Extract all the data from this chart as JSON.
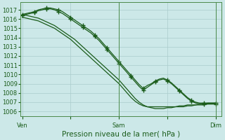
{
  "xlabel": "Pression niveau de la mer( hPa )",
  "bg_color": "#cce8e8",
  "grid_color": "#aacccc",
  "line_color": "#1a5c1a",
  "spine_color": "#4a8a4a",
  "ylim": [
    1005.5,
    1017.8
  ],
  "yticks": [
    1006,
    1007,
    1008,
    1009,
    1010,
    1011,
    1012,
    1013,
    1014,
    1015,
    1016,
    1017
  ],
  "xtick_labels": [
    "Ven",
    "",
    "Sam",
    "",
    "Dim"
  ],
  "xtick_positions": [
    0,
    12,
    24,
    36,
    48
  ],
  "xlim": [
    -0.5,
    49.5
  ],
  "vlines": [
    24,
    48
  ],
  "series": {
    "smooth1": [
      1016.5,
      1016.4,
      1016.3,
      1016.2,
      1016.1,
      1015.9,
      1015.7,
      1015.5,
      1015.3,
      1015.0,
      1014.7,
      1014.4,
      1014.1,
      1013.8,
      1013.4,
      1013.0,
      1012.6,
      1012.2,
      1011.8,
      1011.4,
      1011.0,
      1010.6,
      1010.2,
      1009.8,
      1009.4,
      1008.9,
      1008.4,
      1007.9,
      1007.4,
      1007.0,
      1006.7,
      1006.5,
      1006.4,
      1006.3,
      1006.3,
      1006.3,
      1006.4,
      1006.4,
      1006.5,
      1006.5,
      1006.5,
      1006.6,
      1006.6,
      1006.7,
      1006.7,
      1006.7,
      1006.8,
      1006.8,
      1006.8
    ],
    "smooth2": [
      1016.2,
      1016.1,
      1016.0,
      1015.9,
      1015.8,
      1015.6,
      1015.4,
      1015.2,
      1015.0,
      1014.7,
      1014.4,
      1014.1,
      1013.8,
      1013.4,
      1013.0,
      1012.6,
      1012.2,
      1011.8,
      1011.4,
      1011.0,
      1010.6,
      1010.2,
      1009.8,
      1009.4,
      1009.0,
      1008.5,
      1008.0,
      1007.5,
      1007.1,
      1006.8,
      1006.6,
      1006.5,
      1006.5,
      1006.5,
      1006.5,
      1006.5,
      1006.5,
      1006.5,
      1006.5,
      1006.6,
      1006.6,
      1006.7,
      1006.7,
      1006.7,
      1006.8,
      1006.8,
      1006.9,
      1006.9,
      1006.9
    ],
    "marker1": [
      1016.5,
      1016.6,
      1016.7,
      1016.8,
      1017.0,
      1017.1,
      1017.2,
      1017.2,
      1017.1,
      1017.0,
      1016.8,
      1016.5,
      1016.2,
      1015.9,
      1015.6,
      1015.3,
      1015.0,
      1014.7,
      1014.3,
      1013.9,
      1013.4,
      1012.9,
      1012.4,
      1011.9,
      1011.4,
      1010.9,
      1010.4,
      1009.9,
      1009.4,
      1008.9,
      1008.5,
      1008.8,
      1009.0,
      1009.3,
      1009.5,
      1009.6,
      1009.4,
      1009.1,
      1008.7,
      1008.3,
      1007.9,
      1007.5,
      1007.2,
      1007.0,
      1006.9,
      1006.9,
      1006.9,
      1006.9,
      1006.9
    ],
    "marker2": [
      1016.4,
      1016.5,
      1016.6,
      1016.7,
      1016.9,
      1017.0,
      1017.1,
      1017.1,
      1017.0,
      1016.8,
      1016.6,
      1016.3,
      1016.0,
      1015.7,
      1015.4,
      1015.1,
      1014.8,
      1014.5,
      1014.1,
      1013.7,
      1013.2,
      1012.7,
      1012.2,
      1011.7,
      1011.2,
      1010.7,
      1010.2,
      1009.7,
      1009.2,
      1008.7,
      1008.3,
      1008.6,
      1008.9,
      1009.2,
      1009.4,
      1009.5,
      1009.3,
      1009.0,
      1008.6,
      1008.2,
      1007.8,
      1007.4,
      1007.1,
      1006.9,
      1006.8,
      1006.8,
      1006.8,
      1006.8,
      1006.8
    ]
  },
  "marker_every": 3,
  "marker": "+",
  "markersize": 4.5,
  "linewidth": 0.9,
  "xlabel_fontsize": 7.5,
  "tick_fontsize": 6
}
